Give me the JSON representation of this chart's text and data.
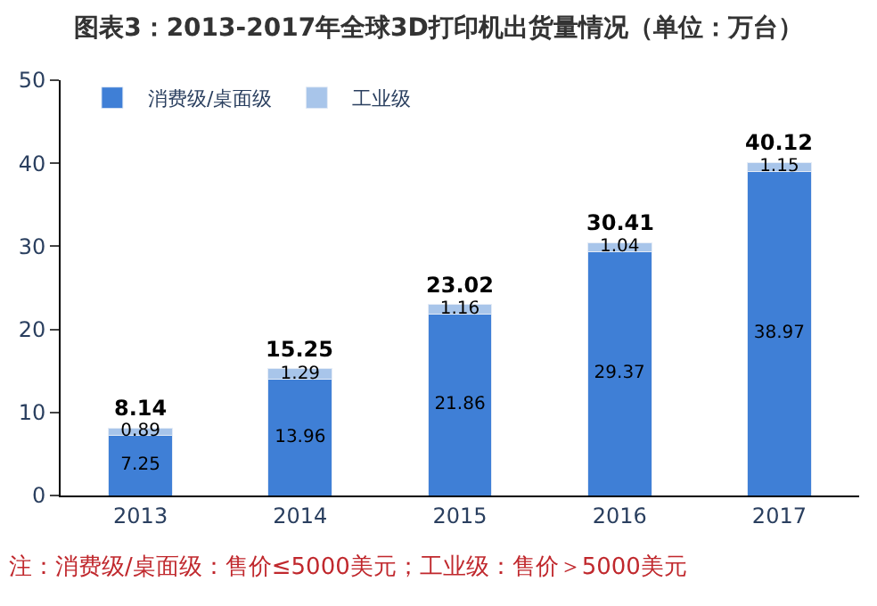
{
  "chart_data": {
    "type": "bar",
    "stacked": true,
    "title": "图表3：2013-2017年全球3D打印机出货量情况（单位：万台）",
    "categories": [
      "2013",
      "2014",
      "2015",
      "2016",
      "2017"
    ],
    "series": [
      {
        "name": "消费级/桌面级",
        "color": "#3f7fd6",
        "values": [
          7.25,
          13.96,
          21.86,
          29.37,
          38.97
        ]
      },
      {
        "name": "工业级",
        "color": "#a8c5ea",
        "values": [
          0.89,
          1.29,
          1.16,
          1.04,
          1.15
        ]
      }
    ],
    "totals": [
      "8.14",
      "15.25",
      "23.02",
      "30.41",
      "40.12"
    ],
    "data_labels": true,
    "ylim": [
      0,
      50
    ],
    "yticks": [
      0,
      10,
      20,
      30,
      40,
      50
    ],
    "legend": "top left",
    "annotations": [
      "注：消费级/桌面级：售价≤5000美元；工业级：售价＞5000美元"
    ]
  }
}
